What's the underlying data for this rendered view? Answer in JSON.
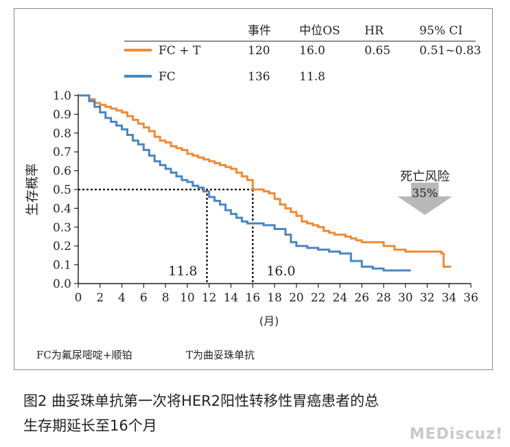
{
  "chart_data": {
    "type": "line",
    "step": true,
    "ylabel": "生存概率",
    "xlabel": "(月)",
    "xlim": [
      0,
      36
    ],
    "ylim": [
      0,
      1.0
    ],
    "xticks": [
      0,
      2,
      4,
      6,
      8,
      10,
      12,
      14,
      16,
      18,
      20,
      22,
      24,
      26,
      28,
      30,
      32,
      34,
      36
    ],
    "yticks": [
      "0.0",
      "0.1",
      "0.2",
      "0.3",
      "0.4",
      "0.5",
      "0.6",
      "0.7",
      "0.8",
      "0.9",
      "1.0"
    ],
    "table": {
      "headers": [
        "事件",
        "中位OS",
        "HR",
        "95% CI"
      ],
      "rows": [
        {
          "name": "FC + T",
          "color": "#f08a36",
          "cells": [
            "120",
            "16.0",
            "0.65",
            "0.51~0.83"
          ]
        },
        {
          "name": "FC",
          "color": "#4a86c0",
          "cells": [
            "136",
            "11.8",
            "",
            ""
          ]
        }
      ]
    },
    "series": [
      {
        "name": "FC + T",
        "color": "#f08a36",
        "x": [
          0,
          0.5,
          1,
          1.5,
          2,
          2.5,
          3,
          3.5,
          4,
          4.5,
          5,
          5.5,
          6,
          6.5,
          7,
          7.5,
          8,
          8.5,
          9,
          9.5,
          10,
          10.5,
          11,
          11.5,
          12,
          12.5,
          13,
          13.5,
          14,
          14.5,
          15,
          15.5,
          16,
          16.5,
          17,
          17.5,
          18,
          18.5,
          19,
          19.5,
          20,
          20.5,
          21,
          21.5,
          22,
          22.5,
          23,
          23.5,
          24,
          24.5,
          25,
          25.5,
          26,
          26.5,
          27,
          28,
          29,
          30,
          31,
          32,
          33,
          33.3,
          33.5,
          34.2
        ],
        "y": [
          1.0,
          1.0,
          0.98,
          0.96,
          0.95,
          0.94,
          0.93,
          0.92,
          0.91,
          0.89,
          0.87,
          0.85,
          0.83,
          0.81,
          0.78,
          0.76,
          0.75,
          0.73,
          0.72,
          0.71,
          0.69,
          0.68,
          0.67,
          0.66,
          0.65,
          0.64,
          0.63,
          0.62,
          0.61,
          0.59,
          0.57,
          0.55,
          0.5,
          0.5,
          0.49,
          0.48,
          0.45,
          0.42,
          0.4,
          0.38,
          0.36,
          0.33,
          0.32,
          0.31,
          0.3,
          0.28,
          0.27,
          0.26,
          0.26,
          0.25,
          0.24,
          0.23,
          0.22,
          0.22,
          0.22,
          0.2,
          0.18,
          0.17,
          0.17,
          0.17,
          0.17,
          0.16,
          0.09,
          0.09
        ]
      },
      {
        "name": "FC",
        "color": "#4a86c0",
        "x": [
          0,
          0.5,
          1,
          1.5,
          2,
          2.5,
          3,
          3.5,
          4,
          4.5,
          5,
          5.5,
          6,
          6.5,
          7,
          7.5,
          8,
          8.5,
          9,
          9.5,
          10,
          10.5,
          11,
          11.5,
          12,
          12.5,
          13,
          13.5,
          14,
          14.5,
          15,
          15.5,
          16,
          17,
          18,
          19,
          19.5,
          20,
          21,
          22,
          23,
          24,
          25,
          26,
          27,
          28,
          29,
          30,
          30.5
        ],
        "y": [
          1.0,
          1.0,
          0.97,
          0.94,
          0.91,
          0.88,
          0.86,
          0.84,
          0.82,
          0.79,
          0.76,
          0.74,
          0.71,
          0.68,
          0.65,
          0.63,
          0.61,
          0.59,
          0.57,
          0.55,
          0.54,
          0.52,
          0.51,
          0.49,
          0.46,
          0.44,
          0.42,
          0.39,
          0.37,
          0.35,
          0.33,
          0.32,
          0.32,
          0.31,
          0.29,
          0.26,
          0.22,
          0.2,
          0.19,
          0.18,
          0.17,
          0.16,
          0.12,
          0.09,
          0.08,
          0.07,
          0.07,
          0.07,
          0.07
        ]
      }
    ],
    "median_lines": [
      {
        "x": 11.8,
        "y": 0.5,
        "label": "11.8"
      },
      {
        "x": 16.0,
        "y": 0.5,
        "label": "16.0"
      }
    ],
    "annotation": {
      "label": "死亡风险",
      "value": "35%",
      "direction": "down",
      "color": "#b8b8b8"
    }
  },
  "footnote": {
    "left": "FC为氟尿嘧啶+顺铂",
    "right": "T为曲妥珠单抗"
  },
  "caption": {
    "line1": "图2 曲妥珠单抗第一次将HER2阳性转移性胃癌患者的总",
    "line2": "生存期延长至16个月"
  },
  "watermark": "MEDiscuz!"
}
